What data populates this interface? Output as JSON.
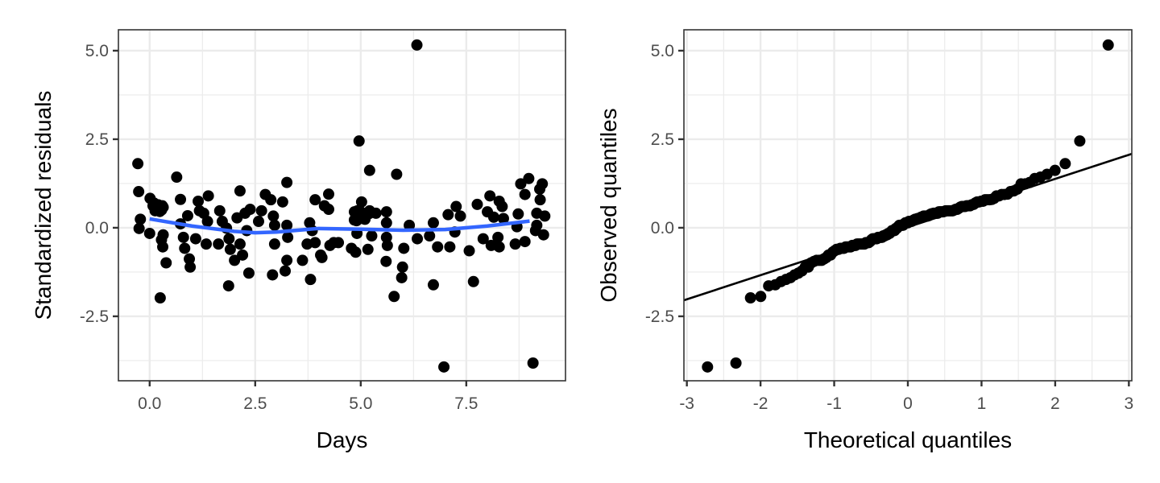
{
  "chart_data": [
    {
      "type": "scatter",
      "title": "",
      "xlabel": "Days",
      "ylabel": "Standardized residuals",
      "xlim": [
        -0.74,
        9.85
      ],
      "ylim": [
        -4.32,
        5.59
      ],
      "xticks": [
        0,
        2.5,
        5,
        7.5
      ],
      "xtick_labels": [
        "0.0",
        "2.5",
        "5.0",
        "7.5"
      ],
      "yticks": [
        -2.5,
        0,
        2.5,
        5
      ],
      "ytick_labels": [
        "-2.5",
        "0.0",
        "2.5",
        "5.0"
      ],
      "grid": true,
      "point_color": "#000000",
      "smooth_color": "#3366FF",
      "points": [
        [
          -0.28,
          1.81
        ],
        [
          -0.26,
          1.02
        ],
        [
          0.01,
          0.83
        ],
        [
          0.1,
          0.7
        ],
        [
          0.2,
          0.65
        ],
        [
          0.3,
          0.62
        ],
        [
          0.15,
          0.55
        ],
        [
          0.28,
          0.5
        ],
        [
          0.08,
          0.62
        ],
        [
          0.2,
          0.6
        ],
        [
          0.32,
          0.58
        ],
        [
          0.13,
          0.48
        ],
        [
          0.24,
          0.46
        ],
        [
          -0.22,
          0.24
        ],
        [
          -0.25,
          -0.02
        ],
        [
          0.0,
          -0.16
        ],
        [
          0.64,
          1.43
        ],
        [
          0.73,
          0.8
        ],
        [
          0.73,
          0.11
        ],
        [
          0.9,
          0.34
        ],
        [
          0.32,
          -0.2
        ],
        [
          0.28,
          -0.34
        ],
        [
          0.31,
          -0.54
        ],
        [
          0.39,
          -0.99
        ],
        [
          0.25,
          -1.98
        ],
        [
          0.8,
          -0.27
        ],
        [
          0.83,
          -0.58
        ],
        [
          0.94,
          -0.88
        ],
        [
          0.96,
          -1.11
        ],
        [
          1.09,
          -0.31
        ],
        [
          1.15,
          0.75
        ],
        [
          1.18,
          0.48
        ],
        [
          1.39,
          0.9
        ],
        [
          1.28,
          0.41
        ],
        [
          1.37,
          0.18
        ],
        [
          1.34,
          -0.46
        ],
        [
          1.66,
          0.48
        ],
        [
          1.72,
          0.18
        ],
        [
          1.82,
          -0.01
        ],
        [
          1.63,
          -0.46
        ],
        [
          1.88,
          -0.31
        ],
        [
          1.91,
          -0.61
        ],
        [
          2.01,
          -0.92
        ],
        [
          2.14,
          -0.46
        ],
        [
          2.2,
          -0.77
        ],
        [
          1.87,
          -1.64
        ],
        [
          2.14,
          1.04
        ],
        [
          2.07,
          0.28
        ],
        [
          2.26,
          0.41
        ],
        [
          2.38,
          0.52
        ],
        [
          2.3,
          -0.08
        ],
        [
          2.35,
          -1.28
        ],
        [
          2.65,
          0.48
        ],
        [
          2.58,
          0.18
        ],
        [
          2.74,
          0.94
        ],
        [
          2.87,
          0.79
        ],
        [
          2.93,
          0.33
        ],
        [
          2.96,
          0.07
        ],
        [
          3.25,
          1.28
        ],
        [
          3.15,
          0.73
        ],
        [
          3.25,
          0.07
        ],
        [
          3.27,
          -0.27
        ],
        [
          2.96,
          -0.46
        ],
        [
          3.25,
          -0.92
        ],
        [
          3.21,
          -1.22
        ],
        [
          2.91,
          -1.33
        ],
        [
          3.62,
          -0.92
        ],
        [
          3.81,
          -1.46
        ],
        [
          3.79,
          0.14
        ],
        [
          3.73,
          -0.46
        ],
        [
          3.92,
          -0.42
        ],
        [
          3.92,
          0.79
        ],
        [
          4.14,
          0.62
        ],
        [
          4.24,
          0.52
        ],
        [
          4.24,
          0.95
        ],
        [
          4.05,
          -0.77
        ],
        [
          4.08,
          -0.84
        ],
        [
          4.27,
          -0.5
        ],
        [
          4.36,
          -0.42
        ],
        [
          3.85,
          -0.08
        ],
        [
          4.47,
          -0.42
        ],
        [
          4.96,
          2.45
        ],
        [
          5.21,
          1.62
        ],
        [
          5.85,
          1.51
        ],
        [
          5.02,
          0.73
        ],
        [
          4.85,
          0.45
        ],
        [
          5.0,
          0.45
        ],
        [
          5.2,
          0.4
        ],
        [
          4.9,
          0.3
        ],
        [
          4.85,
          0.22
        ],
        [
          5.05,
          0.26
        ],
        [
          4.92,
          0.48
        ],
        [
          5.21,
          0.48
        ],
        [
          5.36,
          0.41
        ],
        [
          4.95,
          0.33
        ],
        [
          4.9,
          0.2
        ],
        [
          5.1,
          0.24
        ],
        [
          4.91,
          -0.16
        ],
        [
          5.26,
          -0.23
        ],
        [
          4.78,
          -0.58
        ],
        [
          4.88,
          -0.69
        ],
        [
          5.17,
          -0.61
        ],
        [
          5.61,
          0.45
        ],
        [
          5.61,
          0.14
        ],
        [
          5.61,
          -0.27
        ],
        [
          5.63,
          -0.5
        ],
        [
          5.6,
          -0.95
        ],
        [
          6.02,
          -0.58
        ],
        [
          5.99,
          -1.11
        ],
        [
          5.97,
          -1.41
        ],
        [
          5.79,
          -1.94
        ],
        [
          6.15,
          0.07
        ],
        [
          6.34,
          -0.31
        ],
        [
          6.72,
          0.14
        ],
        [
          6.63,
          -0.23
        ],
        [
          6.82,
          -0.54
        ],
        [
          7.11,
          -0.54
        ],
        [
          7.07,
          0.37
        ],
        [
          7.26,
          0.6
        ],
        [
          7.36,
          0.33
        ],
        [
          7.23,
          -0.12
        ],
        [
          6.72,
          -1.61
        ],
        [
          7.57,
          -0.65
        ],
        [
          7.67,
          -1.52
        ],
        [
          7.76,
          0.66
        ],
        [
          8.06,
          0.9
        ],
        [
          8.0,
          0.45
        ],
        [
          8.28,
          0.75
        ],
        [
          8.35,
          0.6
        ],
        [
          8.15,
          0.3
        ],
        [
          8.38,
          0.26
        ],
        [
          7.9,
          -0.31
        ],
        [
          8.09,
          -0.5
        ],
        [
          8.28,
          -0.54
        ],
        [
          8.25,
          -0.27
        ],
        [
          8.73,
          0.39
        ],
        [
          8.7,
          0.03
        ],
        [
          8.66,
          -0.46
        ],
        [
          8.89,
          -0.39
        ],
        [
          8.79,
          1.24
        ],
        [
          8.98,
          1.39
        ],
        [
          8.89,
          0.94
        ],
        [
          9.3,
          1.24
        ],
        [
          9.24,
          1.09
        ],
        [
          9.25,
          0.79
        ],
        [
          9.17,
          0.41
        ],
        [
          9.36,
          0.33
        ],
        [
          9.17,
          0.07
        ],
        [
          9.14,
          -0.08
        ],
        [
          9.33,
          -0.2
        ],
        [
          6.33,
          5.16
        ],
        [
          6.97,
          -3.93
        ],
        [
          9.08,
          -3.82
        ]
      ],
      "smooth": {
        "x": [
          0,
          1,
          2,
          2.5,
          3,
          4,
          5,
          6,
          7,
          8,
          9
        ],
        "y": [
          0.25,
          0.05,
          -0.1,
          -0.14,
          -0.12,
          -0.02,
          -0.04,
          -0.07,
          -0.05,
          0.05,
          0.19
        ]
      }
    },
    {
      "type": "scatter",
      "title": "",
      "xlabel": "Theoretical quantiles",
      "ylabel": "Observed quantiles",
      "xlim": [
        -3.04,
        3.04
      ],
      "ylim": [
        -4.32,
        5.59
      ],
      "xticks": [
        -3,
        -2,
        -1,
        0,
        1,
        2,
        3
      ],
      "xtick_labels": [
        "-3",
        "-2",
        "-1",
        "0",
        "1",
        "2",
        "3"
      ],
      "yticks": [
        -2.5,
        0,
        2.5,
        5
      ],
      "ytick_labels": [
        "-2.5",
        "0.0",
        "2.5",
        "5.0"
      ],
      "grid": true,
      "point_color": "#000000",
      "sample": "sorted residuals of panel 1",
      "reference_line": {
        "intercept": 0.02,
        "slope": 0.68,
        "color": "#000000"
      }
    }
  ]
}
